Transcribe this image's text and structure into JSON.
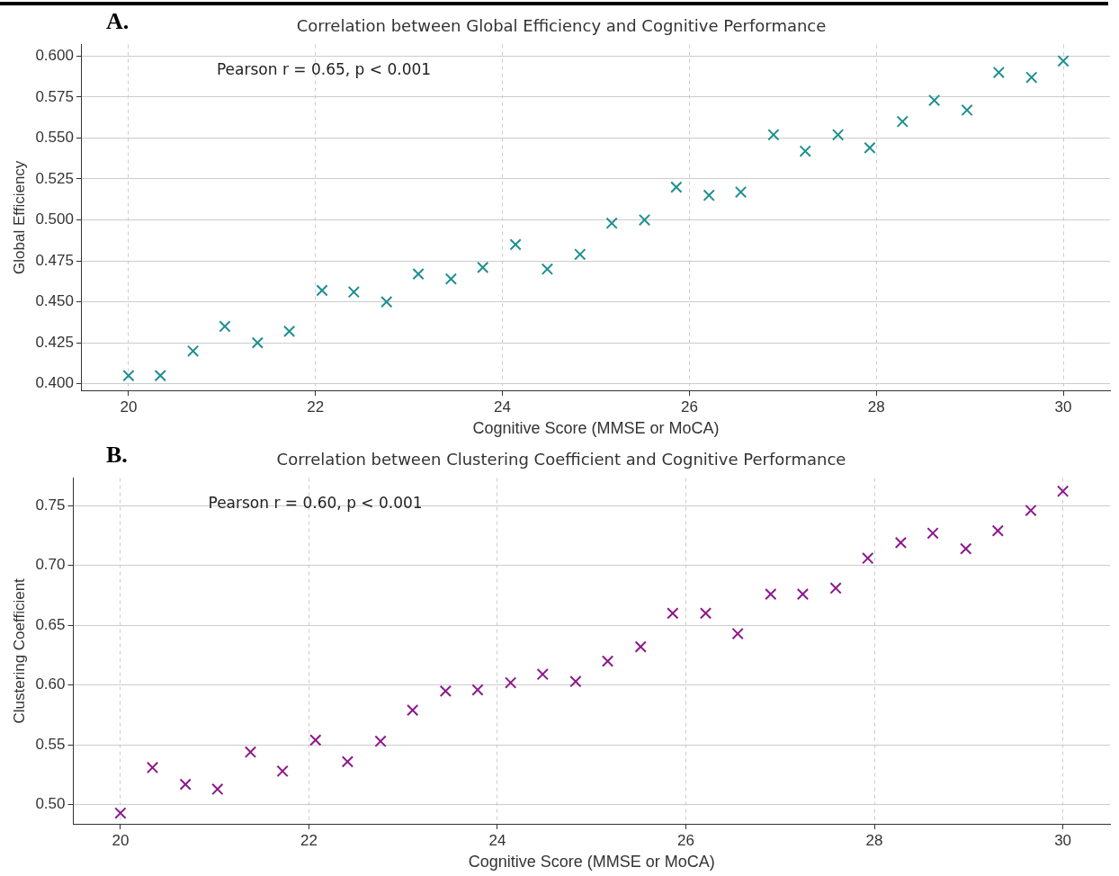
{
  "chart_data": [
    {
      "type": "scatter",
      "title": "Correlation between Global Efficiency and Cognitive Performance",
      "xlabel": "Cognitive Score (MMSE or MoCA)",
      "ylabel": "Global Efficiency",
      "annotations": [
        "A.",
        "Pearson r = 0.65, p < 0.001"
      ],
      "x": [
        20,
        20.34,
        20.69,
        21.03,
        21.38,
        21.72,
        22.07,
        22.41,
        22.76,
        23.1,
        23.45,
        23.79,
        24.14,
        24.48,
        24.83,
        25.17,
        25.52,
        25.86,
        26.21,
        26.55,
        26.9,
        27.24,
        27.59,
        27.93,
        28.28,
        28.62,
        28.97,
        29.31,
        29.66,
        30
      ],
      "series": [
        {
          "color": "#1f8f8f",
          "values": [
            0.405,
            0.405,
            0.42,
            0.435,
            0.425,
            0.432,
            0.457,
            0.456,
            0.45,
            0.467,
            0.464,
            0.471,
            0.485,
            0.47,
            0.479,
            0.498,
            0.5,
            0.52,
            0.515,
            0.517,
            0.552,
            0.542,
            0.552,
            0.544,
            0.56,
            0.573,
            0.567,
            0.59,
            0.587,
            0.597
          ]
        }
      ],
      "xlim": [
        19.5,
        30.5
      ],
      "xticks": [
        20,
        22,
        24,
        26,
        28,
        30
      ],
      "ylim": [
        0.396,
        0.607
      ],
      "yticks": [
        {
          "value": 0.4,
          "label": "0.400"
        },
        {
          "value": 0.425,
          "label": "0.425"
        },
        {
          "value": 0.45,
          "label": "0.450"
        },
        {
          "value": 0.475,
          "label": "0.475"
        },
        {
          "value": 0.5,
          "label": "0.500"
        },
        {
          "value": 0.525,
          "label": "0.525"
        },
        {
          "value": 0.55,
          "label": "0.550"
        },
        {
          "value": 0.575,
          "label": "0.575"
        },
        {
          "value": 0.6,
          "label": "0.600"
        }
      ],
      "grid": true,
      "marker": "cross",
      "legend": false
    },
    {
      "type": "scatter",
      "title": "Correlation between Clustering Coefficient and Cognitive Performance",
      "xlabel": "Cognitive Score (MMSE or MoCA)",
      "ylabel": "Clustering Coefficient",
      "annotations": [
        "B.",
        "Pearson r = 0.60, p < 0.001"
      ],
      "x": [
        20,
        20.34,
        20.69,
        21.03,
        21.38,
        21.72,
        22.07,
        22.41,
        22.76,
        23.1,
        23.45,
        23.79,
        24.14,
        24.48,
        24.83,
        25.17,
        25.52,
        25.86,
        26.21,
        26.55,
        26.9,
        27.24,
        27.59,
        27.93,
        28.28,
        28.62,
        28.97,
        29.31,
        29.66,
        30
      ],
      "series": [
        {
          "color": "#8b1a8b",
          "values": [
            0.493,
            0.531,
            0.517,
            0.513,
            0.544,
            0.528,
            0.554,
            0.536,
            0.553,
            0.579,
            0.595,
            0.596,
            0.602,
            0.609,
            0.603,
            0.62,
            0.632,
            0.66,
            0.66,
            0.643,
            0.676,
            0.676,
            0.681,
            0.706,
            0.719,
            0.727,
            0.714,
            0.729,
            0.746,
            0.762
          ]
        }
      ],
      "xlim": [
        19.5,
        30.5
      ],
      "xticks": [
        20,
        22,
        24,
        26,
        28,
        30
      ],
      "ylim": [
        0.484,
        0.773
      ],
      "yticks": [
        {
          "value": 0.5,
          "label": "0.50"
        },
        {
          "value": 0.55,
          "label": "0.55"
        },
        {
          "value": 0.6,
          "label": "0.60"
        },
        {
          "value": 0.65,
          "label": "0.65"
        },
        {
          "value": 0.7,
          "label": "0.70"
        },
        {
          "value": 0.75,
          "label": "0.75"
        }
      ],
      "grid": true,
      "marker": "cross",
      "legend": false
    }
  ]
}
